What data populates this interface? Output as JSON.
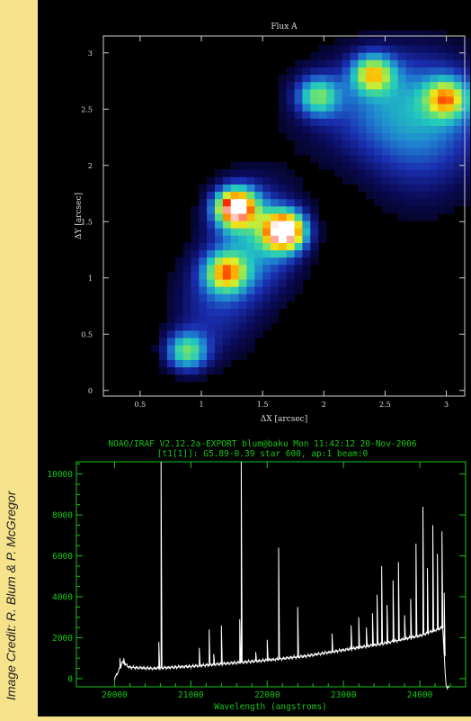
{
  "credit": "Image Credit: R. Blum & P. McGregor",
  "chart_data": [
    {
      "type": "heatmap",
      "title": "Flux A",
      "xlabel": "ΔX [arcsec]",
      "ylabel": "ΔY [arcsec]",
      "xlim": [
        0.2,
        3.15
      ],
      "ylim": [
        -0.05,
        3.15
      ],
      "x_ticks": [
        "0.5",
        "1",
        "1.5",
        "2",
        "2.5",
        "3"
      ],
      "y_ticks": [
        "0",
        "0.5",
        "1",
        "1.5",
        "2",
        "2.5",
        "3"
      ],
      "colormap": [
        "#000000",
        "#0a0a55",
        "#1a2fb0",
        "#1f7fd0",
        "#22c8c0",
        "#5fe07a",
        "#e8f020",
        "#ffb000",
        "#ff2a00",
        "#ffffff"
      ],
      "sources": [
        {
          "x": 1.28,
          "y": 1.63,
          "peak": 0.95
        },
        {
          "x": 1.68,
          "y": 1.42,
          "peak": 1.0
        },
        {
          "x": 1.2,
          "y": 1.05,
          "peak": 0.6
        },
        {
          "x": 0.88,
          "y": 0.35,
          "peak": 0.5
        },
        {
          "x": 2.4,
          "y": 2.82,
          "peak": 0.55
        },
        {
          "x": 3.0,
          "y": 2.6,
          "peak": 0.55
        },
        {
          "x": 1.95,
          "y": 2.62,
          "peak": 0.45
        }
      ]
    },
    {
      "type": "line",
      "header": [
        "NOAO/IRAF V2.12.2a-EXPORT blum@baku Mon 11:42:12 20-Nov-2006",
        "[t1[1]]: G5.89-0.39 star 600, ap:1 beam:0"
      ],
      "xlabel": "Wavelength (angstroms)",
      "ylabel": "",
      "xlim": [
        19500,
        24600
      ],
      "ylim": [
        -400,
        10600
      ],
      "x_ticks": [
        "20000",
        "21000",
        "22000",
        "23000",
        "24000"
      ],
      "y_ticks": [
        "0",
        "2000",
        "4000",
        "6000",
        "8000",
        "10000"
      ],
      "continuum": [
        [
          20000,
          0
        ],
        [
          20050,
          350
        ],
        [
          20100,
          800
        ],
        [
          20200,
          550
        ],
        [
          20500,
          500
        ],
        [
          21000,
          600
        ],
        [
          21500,
          750
        ],
        [
          22000,
          900
        ],
        [
          22500,
          1100
        ],
        [
          23000,
          1400
        ],
        [
          23500,
          1700
        ],
        [
          24000,
          2100
        ],
        [
          24300,
          2500
        ],
        [
          24340,
          -200
        ],
        [
          24360,
          -500
        ],
        [
          24380,
          -400
        ]
      ],
      "lines": [
        [
          20070,
          1000
        ],
        [
          20120,
          1000
        ],
        [
          20580,
          1800
        ],
        [
          20610,
          10600
        ],
        [
          21110,
          1500
        ],
        [
          21240,
          2400
        ],
        [
          21300,
          1200
        ],
        [
          21400,
          2600
        ],
        [
          21640,
          2900
        ],
        [
          21660,
          10600
        ],
        [
          21850,
          1300
        ],
        [
          22000,
          1900
        ],
        [
          22150,
          6400
        ],
        [
          22400,
          3500
        ],
        [
          22850,
          2200
        ],
        [
          23100,
          2600
        ],
        [
          23200,
          3000
        ],
        [
          23300,
          2500
        ],
        [
          23380,
          3200
        ],
        [
          23440,
          4100
        ],
        [
          23500,
          5500
        ],
        [
          23570,
          3600
        ],
        [
          23650,
          4800
        ],
        [
          23720,
          5700
        ],
        [
          23800,
          3100
        ],
        [
          23880,
          3900
        ],
        [
          23950,
          6600
        ],
        [
          24040,
          8400
        ],
        [
          24100,
          5400
        ],
        [
          24170,
          7500
        ],
        [
          24230,
          6100
        ],
        [
          24290,
          7200
        ],
        [
          24320,
          4200
        ]
      ]
    }
  ]
}
